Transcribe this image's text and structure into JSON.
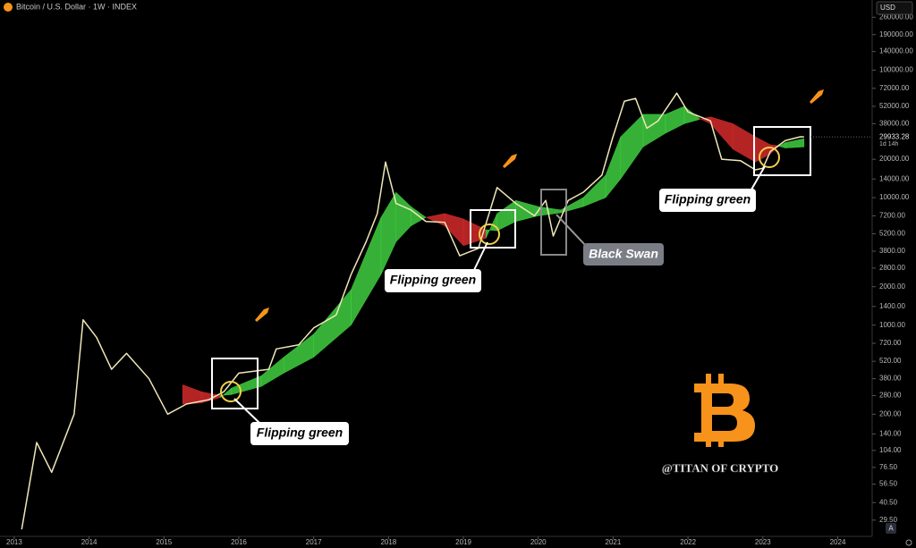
{
  "chart_data": {
    "type": "line",
    "title": "Bitcoin / U.S. Dollar · 1W · INDEX",
    "currency": "USD",
    "log_scale": true,
    "color": "#efe7b8",
    "x": [
      2013.1,
      2013.3,
      2013.5,
      2013.8,
      2013.92,
      2014.1,
      2014.3,
      2014.5,
      2014.8,
      2015.05,
      2015.3,
      2015.6,
      2015.8,
      2016.0,
      2016.4,
      2016.5,
      2016.8,
      2017.0,
      2017.3,
      2017.5,
      2017.7,
      2017.85,
      2017.96,
      2018.1,
      2018.3,
      2018.5,
      2018.75,
      2018.95,
      2019.2,
      2019.45,
      2019.7,
      2019.95,
      2020.1,
      2020.2,
      2020.4,
      2020.6,
      2020.85,
      2020.99,
      2021.15,
      2021.3,
      2021.45,
      2021.6,
      2021.85,
      2022.0,
      2022.3,
      2022.45,
      2022.7,
      2022.9,
      2023.0,
      2023.1,
      2023.3,
      2023.5,
      2023.55
    ],
    "values": [
      25,
      120,
      70,
      200,
      1100,
      800,
      450,
      600,
      380,
      200,
      240,
      260,
      300,
      420,
      450,
      650,
      700,
      950,
      1200,
      2500,
      4500,
      7500,
      19000,
      9000,
      8000,
      6500,
      6400,
      3500,
      4000,
      12000,
      9000,
      7200,
      9500,
      5000,
      9500,
      11000,
      15000,
      29000,
      57000,
      60000,
      35000,
      40000,
      66000,
      47000,
      40000,
      20000,
      19500,
      16500,
      17000,
      23000,
      28000,
      30000,
      29933.28
    ],
    "last_price": {
      "value": 29933.28,
      "label": "29933.28"
    },
    "countdown": "1d 14h",
    "ribbon": {
      "up_color": "#3fcf3f",
      "down_color": "#d42a2a",
      "x": [
        2015.25,
        2015.5,
        2015.75,
        2015.9,
        2016.3,
        2016.6,
        2017.0,
        2017.5,
        2017.9,
        2018.1,
        2018.3,
        2018.5,
        2018.75,
        2019.0,
        2019.3,
        2019.45,
        2019.7,
        2020.0,
        2020.3,
        2020.6,
        2020.9,
        2021.1,
        2021.4,
        2021.7,
        2021.95,
        2022.15,
        2022.3,
        2022.6,
        2022.9,
        2023.1,
        2023.2,
        2023.3,
        2023.55
      ],
      "fast": [
        240,
        245,
        270,
        320,
        400,
        560,
        850,
        1900,
        7000,
        11000,
        8500,
        7000,
        6000,
        4200,
        4800,
        7500,
        9500,
        8500,
        8000,
        10000,
        15000,
        30000,
        45000,
        45000,
        52000,
        42000,
        38000,
        24000,
        19000,
        22000,
        25000,
        27000,
        29000
      ],
      "slow": [
        340,
        300,
        280,
        285,
        330,
        420,
        560,
        1000,
        2500,
        4500,
        6000,
        7000,
        7500,
        6800,
        5600,
        5500,
        6500,
        7200,
        7600,
        8500,
        10000,
        14000,
        25000,
        32000,
        38000,
        41000,
        43000,
        38000,
        30000,
        26000,
        25500,
        24500,
        25000
      ]
    },
    "xlim": [
      2012.81,
      2024.46
    ],
    "xticks": [
      2013,
      2014,
      2015,
      2016,
      2017,
      2018,
      2019,
      2020,
      2021,
      2022,
      2023,
      2024
    ],
    "ylim": [
      22,
      355000
    ],
    "yticks": [
      {
        "value": 260000,
        "label": "260000.00"
      },
      {
        "value": 190000,
        "label": "190000.00"
      },
      {
        "value": 140000,
        "label": "140000.00"
      },
      {
        "value": 100000,
        "label": "100000.00"
      },
      {
        "value": 72000,
        "label": "72000.00"
      },
      {
        "value": 52000,
        "label": "52000.00"
      },
      {
        "value": 38000,
        "label": "38000.00"
      },
      {
        "value": 20000,
        "label": "20000.00"
      },
      {
        "value": 14000,
        "label": "14000.00"
      },
      {
        "value": 10000,
        "label": "10000.00"
      },
      {
        "value": 7200,
        "label": "7200.00"
      },
      {
        "value": 5200,
        "label": "5200.00"
      },
      {
        "value": 3800,
        "label": "3800.00"
      },
      {
        "value": 2800,
        "label": "2800.00"
      },
      {
        "value": 2000,
        "label": "2000.00"
      },
      {
        "value": 1400,
        "label": "1400.00"
      },
      {
        "value": 1000,
        "label": "1000.00"
      },
      {
        "value": 720,
        "label": "720.00"
      },
      {
        "value": 520,
        "label": "520.00"
      },
      {
        "value": 380,
        "label": "380.00"
      },
      {
        "value": 280,
        "label": "280.00"
      },
      {
        "value": 200,
        "label": "200.00"
      },
      {
        "value": 140,
        "label": "140.00"
      },
      {
        "value": 104,
        "label": "104.00"
      },
      {
        "value": 76.5,
        "label": "76.50"
      },
      {
        "value": 56.5,
        "label": "56.50"
      },
      {
        "value": 40.5,
        "label": "40.50"
      },
      {
        "value": 29.5,
        "label": "29.50"
      }
    ],
    "annotations": [
      "Flipping green",
      "Flipping green",
      "Flipping green",
      "Black Swan"
    ],
    "watermark": "@TITAN OF CRYPTO",
    "scale_mode": "A"
  }
}
